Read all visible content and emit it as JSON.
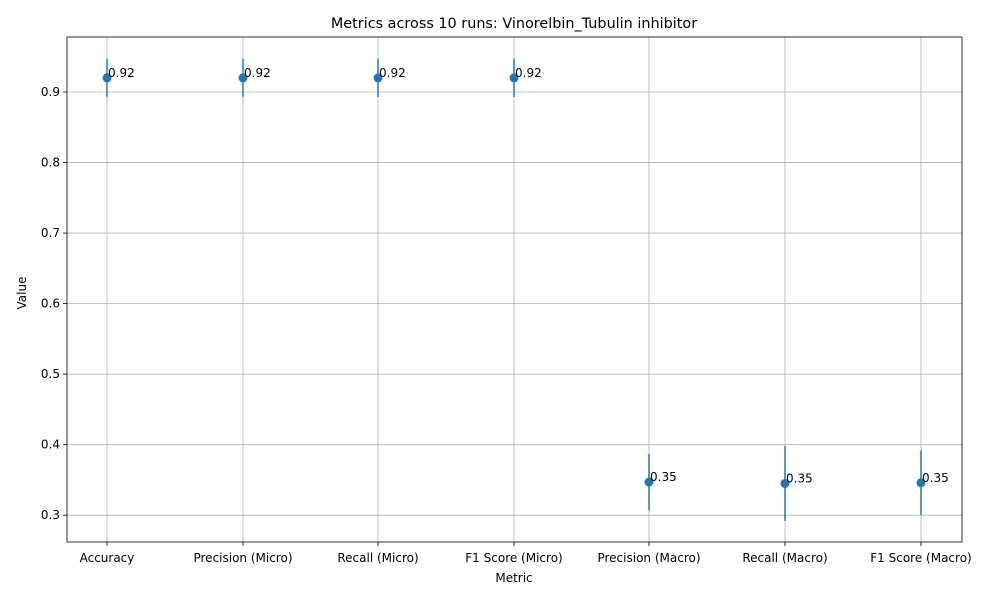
{
  "chart_data": {
    "type": "scatter",
    "title": "Metrics across 10 runs: Vinorelbin_Tubulin inhibitor",
    "xlabel": "Metric",
    "ylabel": "Value",
    "categories": [
      "Accuracy",
      "Precision (Micro)",
      "Recall (Micro)",
      "F1 Score (Micro)",
      "Precision (Macro)",
      "Recall (Macro)",
      "F1 Score (Macro)"
    ],
    "series": [
      {
        "values": [
          0.92,
          0.92,
          0.92,
          0.92,
          0.347,
          0.345,
          0.346
        ],
        "error": [
          0.027,
          0.027,
          0.027,
          0.027,
          0.04,
          0.053,
          0.046
        ],
        "data_labels": [
          "0.92",
          "0.92",
          "0.92",
          "0.92",
          "0.35",
          "0.35",
          "0.35"
        ]
      }
    ],
    "ylim": [
      0.262,
      0.978
    ],
    "yticks": [
      0.3,
      0.4,
      0.5,
      0.6,
      0.7,
      0.8,
      0.9
    ],
    "ytick_labels": [
      "0.3",
      "0.4",
      "0.5",
      "0.6",
      "0.7",
      "0.8",
      "0.9"
    ],
    "grid": true,
    "colors": {
      "marker": "#1f77b4",
      "grid": "#b0b0b0"
    }
  }
}
